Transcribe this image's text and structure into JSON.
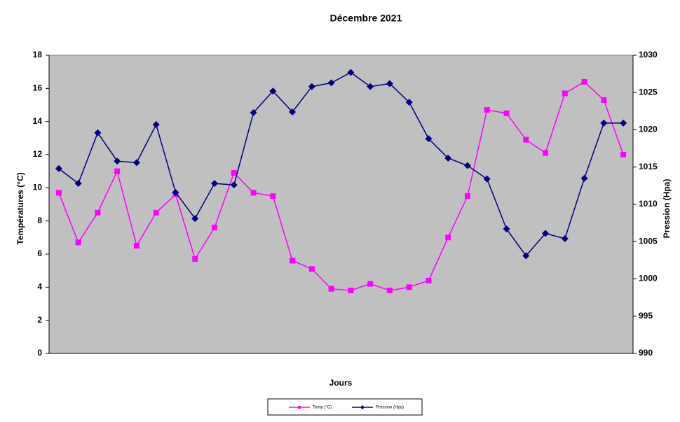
{
  "chart_data": {
    "type": "line",
    "title": "Décembre 2021",
    "x_label": "Jours",
    "y_label": "Températures  (°C)",
    "y2_label": "Pression (Hpa)",
    "ylim": [
      0,
      18
    ],
    "yticks": [
      0,
      2,
      4,
      6,
      8,
      10,
      12,
      14,
      16,
      18
    ],
    "y2lim": [
      990,
      1030
    ],
    "y2ticks": [
      990,
      995,
      1000,
      1005,
      1010,
      1015,
      1020,
      1025,
      1030
    ],
    "legend": "bottom",
    "series": [
      {
        "name": "Temp (°C)",
        "color": "#ff00ff",
        "marker": "square",
        "values": [
          9.7,
          6.7,
          8.5,
          11,
          6.5,
          8.5,
          9.6,
          5.7,
          7.6,
          10.9,
          9.7,
          9.5,
          5.6,
          5.1,
          3.9,
          3.8,
          4.2,
          3.8,
          4.0,
          4.4,
          7.0,
          9.5,
          14.7,
          14.5,
          12.9,
          12.1,
          15.7,
          16.4,
          15.3,
          12.0
        ]
      },
      {
        "name": "Pression (Hpa)",
        "color": "#000080",
        "marker": "diamond",
        "axis": "y2",
        "values": [
          1014.8,
          1012.8,
          1019.6,
          1015.8,
          1015.6,
          1020.7,
          1011.6,
          1008.1,
          1012.8,
          1012.6,
          1022.3,
          1025.2,
          1022.4,
          1025.8,
          1026.3,
          1027.7,
          1025.8,
          1026.2,
          1023.7,
          1018.8,
          1016.2,
          1015.2,
          1013.4,
          1006.7,
          1003.1,
          1006.1,
          1005.4,
          1013.5,
          1020.9,
          1020.9
        ]
      }
    ]
  }
}
